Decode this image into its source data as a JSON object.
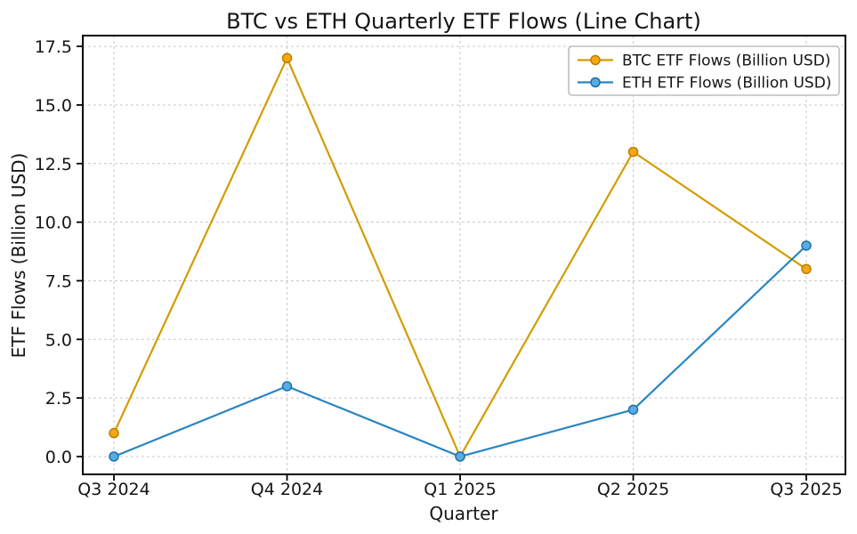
{
  "figure": {
    "background": "#ffffff",
    "text_color": "#151515",
    "frame_color": "#000000"
  },
  "chart_data": {
    "type": "line",
    "title": "BTC vs ETH Quarterly ETF Flows (Line Chart)",
    "xlabel": "Quarter",
    "ylabel": "ETF Flows (Billion USD)",
    "categories": [
      "Q3 2024",
      "Q4 2024",
      "Q1 2025",
      "Q2 2025",
      "Q3 2025"
    ],
    "series": [
      {
        "name": "BTC ETF Flows (Billion USD)",
        "values": [
          1,
          17,
          0,
          13,
          8
        ],
        "line_color": "#d49b00",
        "marker_fill": "#f4a810",
        "marker_edge": "#bf7c00",
        "marker": "circle"
      },
      {
        "name": "ETH ETF Flows (Billion USD)",
        "values": [
          0,
          3,
          0,
          2,
          9
        ],
        "line_color": "#2a85c2",
        "marker_fill": "#57ace2",
        "marker_edge": "#1f6fa8",
        "marker": "circle"
      }
    ],
    "yticks": [
      0,
      2.5,
      5,
      7.5,
      10,
      12.5,
      15,
      17.5
    ],
    "ytick_labels": [
      "0.0",
      "2.5",
      "5.0",
      "7.5",
      "10.0",
      "12.5",
      "15.0",
      "17.5"
    ],
    "ylim": [
      -0.76,
      17.96
    ],
    "xlim": [
      -0.18,
      4.226
    ],
    "grid": true,
    "grid_color": "#c9c9c9",
    "legend": {
      "position": "upper right",
      "entries": [
        "BTC ETF Flows (Billion USD)",
        "ETH ETF Flows (Billion USD)"
      ],
      "border_color": "#b0b0b0",
      "background": "#ffffff"
    }
  }
}
